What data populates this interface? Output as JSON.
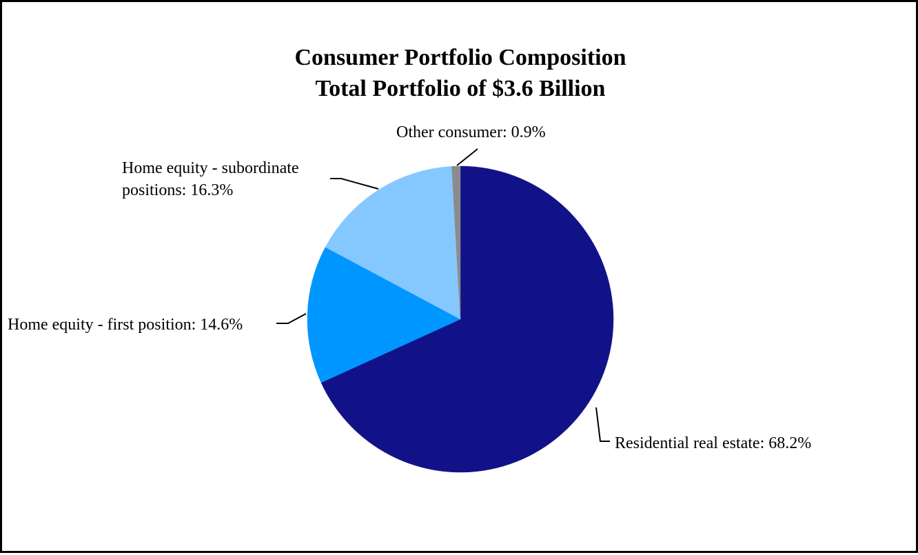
{
  "chart_data": {
    "type": "pie",
    "title": "Consumer Portfolio Composition",
    "subtitle": "Total Portfolio of $3.6 Billion",
    "slices": [
      {
        "name": "Residential real estate",
        "value": 68.2,
        "label": "Residential real estate: 68.2%",
        "color": "#121288"
      },
      {
        "name": "Home equity - first position",
        "value": 14.6,
        "label": "Home equity - first position: 14.6%",
        "color": "#0096FF"
      },
      {
        "name": "Home equity - subordinate positions",
        "value": 16.3,
        "label_lines": [
          "Home equity - subordinate",
          "positions: 16.3%"
        ],
        "color": "#85C8FF"
      },
      {
        "name": "Other consumer",
        "value": 0.9,
        "label": "Other consumer: 0.9%",
        "color": "#8C8C8C"
      }
    ],
    "start_angle": "12 o'clock",
    "direction": "clockwise",
    "legend": "none"
  }
}
